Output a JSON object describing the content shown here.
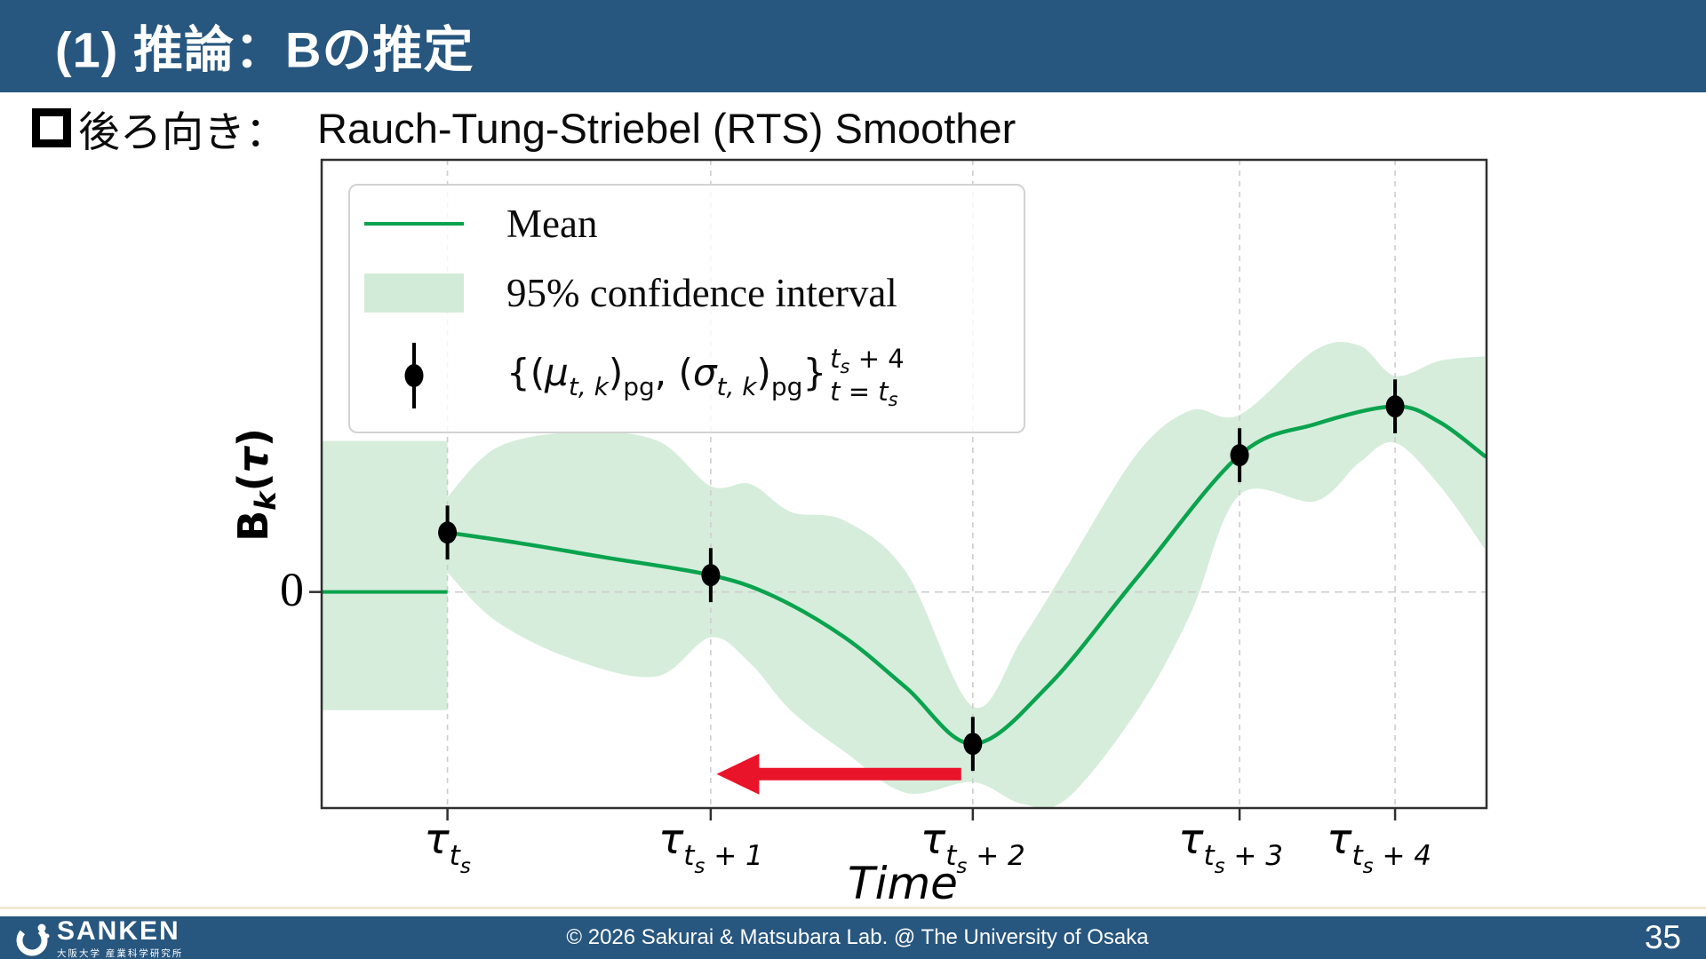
{
  "header": {
    "title": "(1) 推論：Bの推定"
  },
  "subtitle": {
    "jp": "後ろ向き：",
    "en": "Rauch-Tung-Striebel (RTS) Smoother"
  },
  "footer": {
    "logo_name": "SANKEN",
    "logo_sub": "大阪大学 産業科学研究所",
    "copyright": "© 2026 Sakurai & Matsubara Lab. @ The University of Osaka",
    "page_number": "35"
  },
  "chart_data": {
    "type": "line",
    "title": "",
    "xlabel": "Time",
    "ylabel_text": "B_k(τ)",
    "ylabel_parts": [
      {
        "t": "B",
        "c": "yl-b"
      },
      {
        "t": "k",
        "c": "yl-k"
      },
      {
        "t": "(",
        "c": "yl-b"
      },
      {
        "t": "τ",
        "c": "yl-tau"
      },
      {
        "t": ")",
        "c": "yl-b"
      }
    ],
    "y_tick_labels": [
      "0"
    ],
    "ylim": [
      -1,
      2
    ],
    "grid": "dashed-vertical-at-ticks-plus-zero-line",
    "legend_position": "upper-left",
    "legend": {
      "mean_label": "Mean",
      "ci_label": "95% confidence interval",
      "formula_text": "{(μ_t,k)_pg, (σ_t,k)_pg}  sup: t_s + 4  sub: t = t_s",
      "formula_body": [
        {
          "t": "{(",
          "c": "f-up"
        },
        {
          "t": "μ",
          "c": "f-it"
        },
        {
          "t": "t, k",
          "c": "f-subit"
        },
        {
          "t": ")",
          "c": "f-up"
        },
        {
          "t": "pg",
          "c": "f-subup"
        },
        {
          "t": ", (",
          "c": "f-up"
        },
        {
          "t": "σ",
          "c": "f-it"
        },
        {
          "t": "t, k",
          "c": "f-subit"
        },
        {
          "t": ")",
          "c": "f-up"
        },
        {
          "t": "pg",
          "c": "f-subup"
        },
        {
          "t": "}",
          "c": "f-up"
        }
      ],
      "formula_sup": [
        {
          "t": "t",
          "c": "f-it"
        },
        {
          "t": "s",
          "c": "f-subit"
        },
        {
          "t": " + 4",
          "c": "f-up"
        }
      ],
      "formula_sub": [
        {
          "t": "t",
          "c": "f-it"
        },
        {
          "t": " = ",
          "c": "f-up"
        },
        {
          "t": "t",
          "c": "f-it"
        },
        {
          "t": "s",
          "c": "f-subit"
        }
      ]
    },
    "x_ticks": [
      {
        "frac": 0.108,
        "dx": 0,
        "main": "τ",
        "sub": "t",
        "subsub": "s",
        "suffix": ""
      },
      {
        "frac": 0.334,
        "dx": 0,
        "main": "τ",
        "sub": "t",
        "subsub": "s",
        "suffix": " + 1"
      },
      {
        "frac": 0.559,
        "dx": 0,
        "main": "τ",
        "sub": "t",
        "subsub": "s",
        "suffix": " + 2"
      },
      {
        "frac": 0.788,
        "dx": -10,
        "main": "τ",
        "sub": "t",
        "subsub": "s",
        "suffix": " + 3"
      },
      {
        "frac": 0.9215,
        "dx": -18,
        "main": "τ",
        "sub": "t",
        "subsub": "s",
        "suffix": " + 4"
      }
    ],
    "prior_mean": {
      "x0": 0.0,
      "x1": 0.108,
      "y": 0.0
    },
    "prior_band": {
      "x0": 0.0,
      "x1": 0.108,
      "top": 0.699,
      "bottom": -0.547
    },
    "mean": [
      [
        0.108,
        0.275
      ],
      [
        0.17,
        0.226
      ],
      [
        0.243,
        0.16
      ],
      [
        0.334,
        0.078
      ],
      [
        0.388,
        -0.02
      ],
      [
        0.449,
        -0.21
      ],
      [
        0.502,
        -0.444
      ],
      [
        0.559,
        -0.703
      ],
      [
        0.624,
        -0.432
      ],
      [
        0.7,
        0.066
      ],
      [
        0.788,
        0.633
      ],
      [
        0.853,
        0.777
      ],
      [
        0.9215,
        0.859
      ],
      [
        0.96,
        0.785
      ],
      [
        0.9985,
        0.629
      ]
    ],
    "band_top": [
      [
        0.108,
        0.44
      ],
      [
        0.151,
        0.67
      ],
      [
        0.22,
        0.74
      ],
      [
        0.288,
        0.7
      ],
      [
        0.334,
        0.49
      ],
      [
        0.368,
        0.5
      ],
      [
        0.403,
        0.37
      ],
      [
        0.449,
        0.33
      ],
      [
        0.502,
        0.09
      ],
      [
        0.559,
        -0.53
      ],
      [
        0.601,
        -0.22
      ],
      [
        0.639,
        0.11
      ],
      [
        0.7,
        0.64
      ],
      [
        0.746,
        0.84
      ],
      [
        0.788,
        0.82
      ],
      [
        0.853,
        1.12
      ],
      [
        0.891,
        1.14
      ],
      [
        0.9215,
        1.0
      ],
      [
        0.96,
        1.07
      ],
      [
        0.9985,
        1.09
      ]
    ],
    "band_bottom": [
      [
        0.108,
        0.09
      ],
      [
        0.151,
        -0.14
      ],
      [
        0.22,
        -0.32
      ],
      [
        0.288,
        -0.39
      ],
      [
        0.334,
        -0.21
      ],
      [
        0.368,
        -0.33
      ],
      [
        0.403,
        -0.55
      ],
      [
        0.449,
        -0.74
      ],
      [
        0.502,
        -0.93
      ],
      [
        0.559,
        -0.88
      ],
      [
        0.601,
        -0.98
      ],
      [
        0.639,
        -0.96
      ],
      [
        0.7,
        -0.55
      ],
      [
        0.746,
        -0.1
      ],
      [
        0.788,
        0.45
      ],
      [
        0.853,
        0.42
      ],
      [
        0.891,
        0.6
      ],
      [
        0.9215,
        0.69
      ],
      [
        0.96,
        0.49
      ],
      [
        0.9985,
        0.2
      ]
    ],
    "points": {
      "x": [
        0.108,
        0.334,
        0.559,
        0.788,
        0.9215
      ],
      "y": [
        0.275,
        0.078,
        -0.703,
        0.633,
        0.859
      ],
      "yerr": 0.125
    },
    "arrow": {
      "x_from": 0.549,
      "x_to": 0.339,
      "y": -0.843
    },
    "colors": {
      "mean_line": "#0aa34e",
      "band_fill": "#d6eddc",
      "legend_band_fill": "#d2ebd8",
      "points": "#000000",
      "arrow": "#e91429",
      "grid": "#cdcdcd",
      "border": "#2f2f2f",
      "header_blue": "#27567f"
    }
  }
}
